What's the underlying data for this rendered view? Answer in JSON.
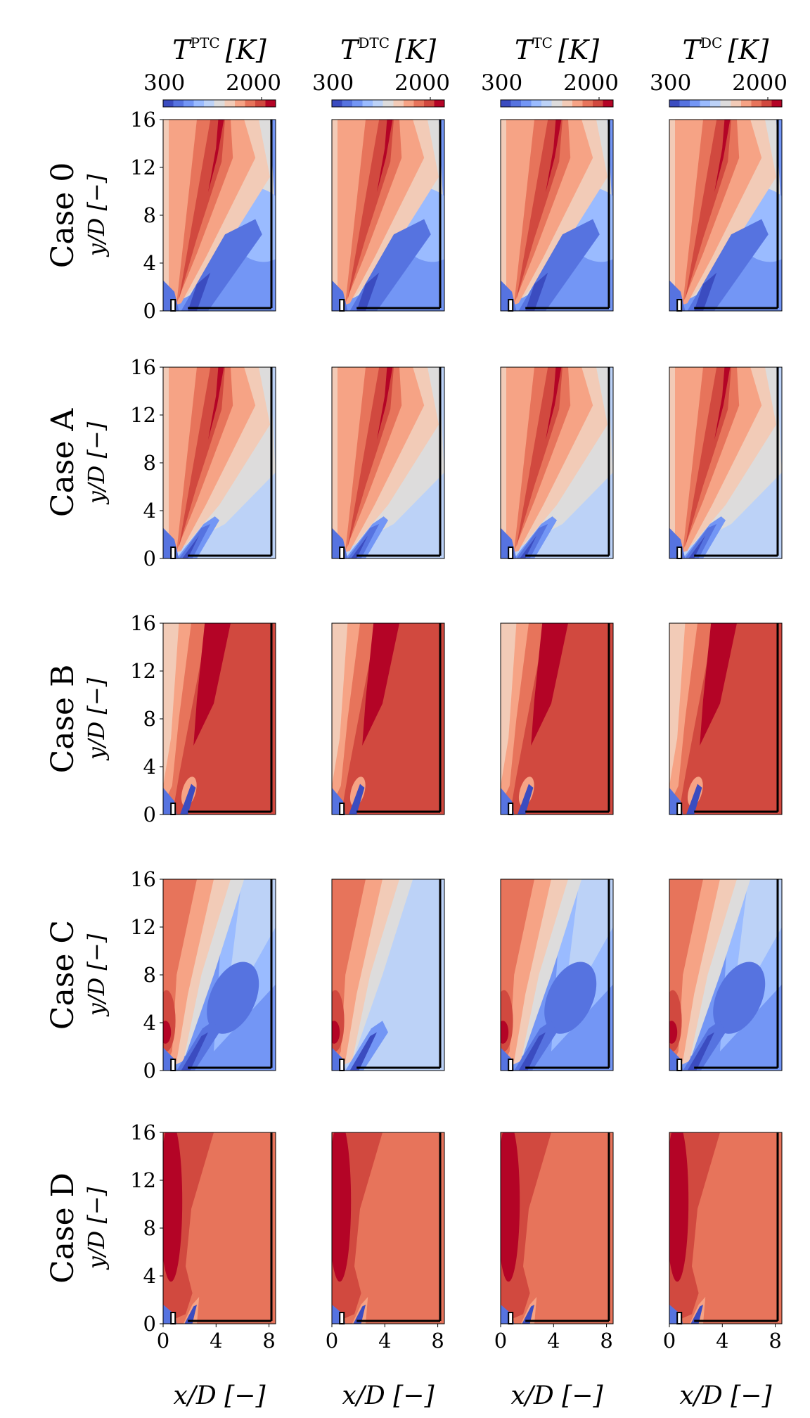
{
  "figure": {
    "columns": [
      {
        "symbol": "T",
        "superscript": "PTC",
        "unit": "[K]"
      },
      {
        "symbol": "T",
        "superscript": "DTC",
        "unit": "[K]"
      },
      {
        "symbol": "T",
        "superscript": "TC",
        "unit": "[K]"
      },
      {
        "symbol": "T",
        "superscript": "DC",
        "unit": "[K]"
      }
    ],
    "rows": [
      "Case 0",
      "Case A",
      "Case B",
      "Case C",
      "Case D"
    ],
    "colorbar": {
      "min_label": "300",
      "max_label": "2000",
      "vmin": 300,
      "vmax": 2000,
      "levels": 14,
      "colormap": "coolwarm"
    },
    "xlabel": "x/D [−]",
    "ylabel": "y/D [−]"
  },
  "chart_data": {
    "type": "heatmap",
    "description_kind": "filled temperature contours, 5 cases x 4 models",
    "x_ticks": [
      "0",
      "4",
      "8"
    ],
    "y_ticks": [
      "0",
      "4",
      "8",
      "12",
      "16"
    ],
    "xlim": [
      0,
      8.5
    ],
    "ylim": [
      0,
      16
    ],
    "colors": {
      "c1": "#3b4cc0",
      "c2": "#5673e0",
      "c3": "#7396f5",
      "c4": "#9abbff",
      "c5": "#bcd2f7",
      "c6": "#dddcdc",
      "c7": "#f2cbb7",
      "c8": "#f6a385",
      "c9": "#e7745b",
      "c10": "#d1493f",
      "c11": "#b40426"
    },
    "panels": [
      {
        "case": "Case 0",
        "model": "PTC",
        "ambient_temperature_level": "cold",
        "jet_peak": "2000"
      },
      {
        "case": "Case 0",
        "model": "DTC",
        "ambient_temperature_level": "cold",
        "jet_peak": "2000"
      },
      {
        "case": "Case 0",
        "model": "TC",
        "ambient_temperature_level": "cold",
        "jet_peak": "2000"
      },
      {
        "case": "Case 0",
        "model": "DC",
        "ambient_temperature_level": "cold",
        "jet_peak": "2000"
      },
      {
        "case": "Case A",
        "model": "PTC",
        "ambient_temperature_level": "intermediate",
        "jet_peak": "2000"
      },
      {
        "case": "Case A",
        "model": "DTC",
        "ambient_temperature_level": "intermediate",
        "jet_peak": "2000"
      },
      {
        "case": "Case A",
        "model": "TC",
        "ambient_temperature_level": "intermediate",
        "jet_peak": "2000"
      },
      {
        "case": "Case A",
        "model": "DC",
        "ambient_temperature_level": "intermediate",
        "jet_peak": "2000"
      },
      {
        "case": "Case B",
        "model": "PTC",
        "ambient_temperature_level": "hot",
        "jet_peak": "2000"
      },
      {
        "case": "Case B",
        "model": "DTC",
        "ambient_temperature_level": "hot",
        "jet_peak": "2000"
      },
      {
        "case": "Case B",
        "model": "TC",
        "ambient_temperature_level": "hot",
        "jet_peak": "2000"
      },
      {
        "case": "Case B",
        "model": "DC",
        "ambient_temperature_level": "hot",
        "jet_peak": "2000"
      },
      {
        "case": "Case C",
        "model": "PTC",
        "ambient_temperature_level": "cold",
        "jet_peak": "2000"
      },
      {
        "case": "Case C",
        "model": "DTC",
        "ambient_temperature_level": "light",
        "jet_peak": "2000"
      },
      {
        "case": "Case C",
        "model": "TC",
        "ambient_temperature_level": "cold",
        "jet_peak": "2000"
      },
      {
        "case": "Case C",
        "model": "DC",
        "ambient_temperature_level": "cold",
        "jet_peak": "2000"
      },
      {
        "case": "Case D",
        "model": "PTC",
        "ambient_temperature_level": "hot",
        "jet_peak": "2000"
      },
      {
        "case": "Case D",
        "model": "DTC",
        "ambient_temperature_level": "hot",
        "jet_peak": "2000"
      },
      {
        "case": "Case D",
        "model": "TC",
        "ambient_temperature_level": "hot",
        "jet_peak": "2000"
      },
      {
        "case": "Case D",
        "model": "DC",
        "ambient_temperature_level": "hot",
        "jet_peak": "2000"
      }
    ]
  }
}
